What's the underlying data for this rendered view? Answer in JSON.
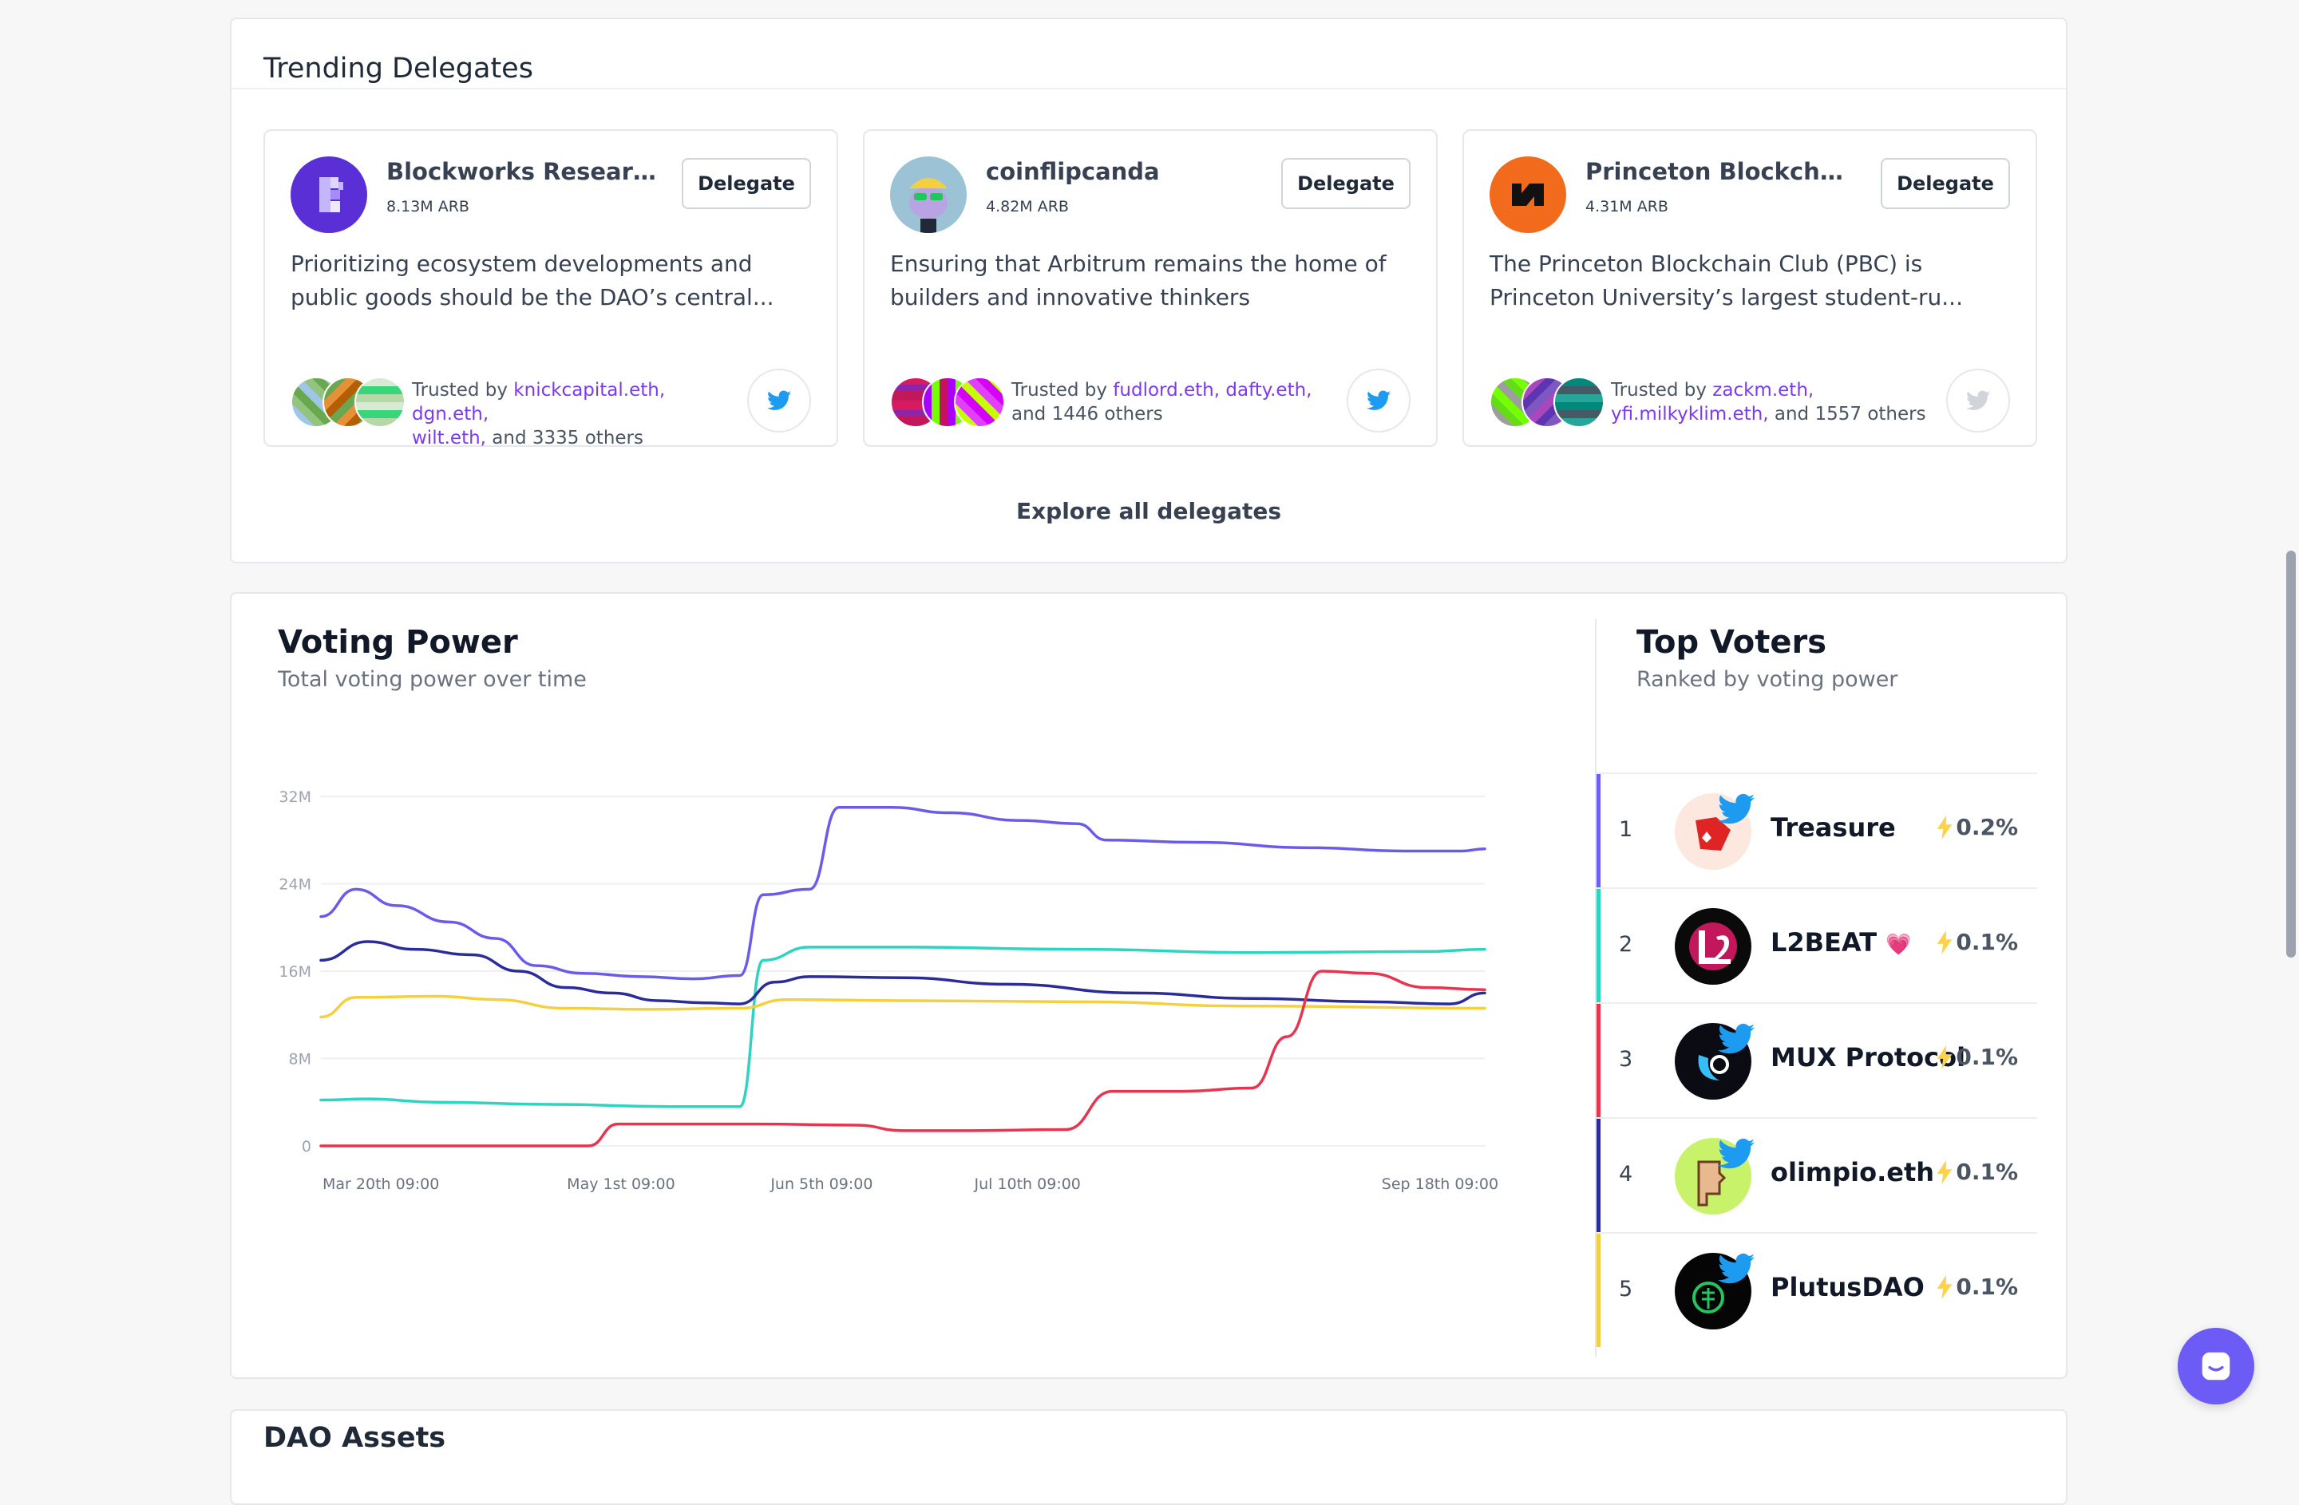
{
  "trending": {
    "title": "Trending Delegates",
    "delegate_label": "Delegate",
    "explore_label": "Explore all delegates",
    "cards": [
      {
        "name": "Blockworks Research",
        "power": "8.13M ARB",
        "bio": "Prioritizing ecosystem developments and public goods should be the DAO’s central...",
        "trusted_prefix": "Trusted by ",
        "links": [
          "knickcapital.eth,",
          "dgn.eth,",
          "wilt.eth,"
        ],
        "others": "and 3335 others",
        "avatar_color": "#5b2fd6",
        "twitter_active": true
      },
      {
        "name": "coinflipcanda",
        "power": "4.82M ARB",
        "bio": "Ensuring that Arbitrum remains the home of builders and innovative thinkers",
        "trusted_prefix": "Trusted by ",
        "links": [
          "fudlord.eth,",
          "dafty.eth,"
        ],
        "others": "and 1446 others",
        "avatar_color": "#8fb8cf",
        "twitter_active": true
      },
      {
        "name": "Princeton Blockchain...",
        "power": "4.31M ARB",
        "bio": "The Princeton Blockchain Club (PBC) is Princeton University’s largest student-ru...",
        "trusted_prefix": "Trusted by ",
        "links": [
          "zackm.eth,",
          "yfi.milkyklim.eth,"
        ],
        "others": "and 1557 others",
        "avatar_color": "#f26b1d",
        "twitter_active": false
      }
    ]
  },
  "voting_power": {
    "title": "Voting Power",
    "subtitle": "Total voting power over time"
  },
  "chart_data": {
    "type": "line",
    "title": "Voting Power",
    "subtitle": "Total voting power over time",
    "x_tick_labels": [
      "Mar 20th 09:00",
      "May 1st 09:00",
      "Jun 5th 09:00",
      "Jul 10th 09:00",
      "Sep 18th 09:00"
    ],
    "x_tick_positions": [
      0,
      42,
      77,
      112,
      182
    ],
    "y_tick_labels": [
      "0",
      "8M",
      "16M",
      "24M",
      "32M"
    ],
    "y_tick_values": [
      0,
      8,
      16,
      24,
      32
    ],
    "ylim": [
      0,
      32
    ],
    "xlim": [
      0,
      200
    ],
    "grid": true,
    "series": [
      {
        "color": "#6b5bed",
        "points": [
          [
            0,
            21
          ],
          [
            6,
            23.5
          ],
          [
            13,
            22
          ],
          [
            22,
            20.5
          ],
          [
            30,
            19
          ],
          [
            37,
            16.5
          ],
          [
            45,
            15.8
          ],
          [
            55,
            15.5
          ],
          [
            64,
            15.3
          ],
          [
            72,
            15.6
          ],
          [
            76,
            23
          ],
          [
            84,
            23.5
          ],
          [
            89,
            31
          ],
          [
            98,
            31
          ],
          [
            108,
            30.5
          ],
          [
            120,
            29.8
          ],
          [
            130,
            29.5
          ],
          [
            135,
            28
          ],
          [
            150,
            27.8
          ],
          [
            170,
            27.3
          ],
          [
            186,
            27
          ],
          [
            196,
            27
          ],
          [
            200,
            27.2
          ]
        ]
      },
      {
        "color": "#2dd4bf",
        "points": [
          [
            0,
            4.2
          ],
          [
            8,
            4.3
          ],
          [
            20,
            4
          ],
          [
            40,
            3.8
          ],
          [
            60,
            3.6
          ],
          [
            72,
            3.6
          ],
          [
            76,
            17
          ],
          [
            84,
            18.2
          ],
          [
            100,
            18.2
          ],
          [
            130,
            18
          ],
          [
            160,
            17.7
          ],
          [
            190,
            17.8
          ],
          [
            200,
            18
          ]
        ]
      },
      {
        "color": "#2b2b9a",
        "points": [
          [
            0,
            17
          ],
          [
            8,
            18.7
          ],
          [
            16,
            18
          ],
          [
            26,
            17.5
          ],
          [
            34,
            16
          ],
          [
            42,
            14.5
          ],
          [
            50,
            14
          ],
          [
            58,
            13.3
          ],
          [
            66,
            13.1
          ],
          [
            72,
            13
          ],
          [
            78,
            15
          ],
          [
            84,
            15.5
          ],
          [
            100,
            15.4
          ],
          [
            118,
            14.8
          ],
          [
            140,
            14
          ],
          [
            160,
            13.5
          ],
          [
            180,
            13.2
          ],
          [
            194,
            13
          ],
          [
            200,
            14
          ]
        ]
      },
      {
        "color": "#f4d03f",
        "points": [
          [
            0,
            11.8
          ],
          [
            6,
            13.6
          ],
          [
            20,
            13.7
          ],
          [
            30,
            13.4
          ],
          [
            42,
            12.6
          ],
          [
            56,
            12.5
          ],
          [
            72,
            12.6
          ],
          [
            80,
            13.4
          ],
          [
            100,
            13.3
          ],
          [
            130,
            13.2
          ],
          [
            160,
            12.8
          ],
          [
            200,
            12.6
          ]
        ]
      },
      {
        "color": "#e8344e",
        "points": [
          [
            0,
            0
          ],
          [
            30,
            0
          ],
          [
            46,
            0
          ],
          [
            51,
            2
          ],
          [
            60,
            2
          ],
          [
            75,
            2
          ],
          [
            92,
            1.9
          ],
          [
            100,
            1.4
          ],
          [
            112,
            1.4
          ],
          [
            128,
            1.5
          ],
          [
            136,
            5
          ],
          [
            148,
            5
          ],
          [
            160,
            5.3
          ],
          [
            166,
            10
          ],
          [
            172,
            16
          ],
          [
            180,
            15.8
          ],
          [
            190,
            14.5
          ],
          [
            200,
            14.3
          ]
        ]
      }
    ]
  },
  "top_voters": {
    "title": "Top Voters",
    "subtitle": "Ranked by voting power",
    "voters": [
      {
        "rank": "1",
        "name": "Treasure",
        "emoji": "",
        "pct": "0.2%",
        "color": "#6d5ff5",
        "avatar_bg": "#fde8e0",
        "avatar_fg": "#e02424",
        "twitter": true
      },
      {
        "rank": "2",
        "name": "L2BEAT",
        "emoji": "💗",
        "pct": "0.1%",
        "color": "#2dd4bf",
        "avatar_bg": "#0a0a0a",
        "avatar_fg": "#ff3e8b",
        "twitter": false
      },
      {
        "rank": "3",
        "name": "MUX Protocol",
        "emoji": "",
        "pct": "0.1%",
        "color": "#e8344e",
        "avatar_bg": "#0b0b14",
        "avatar_fg": "#38bdf8",
        "twitter": true
      },
      {
        "rank": "4",
        "name": "olimpio.eth",
        "emoji": "",
        "pct": "0.1%",
        "color": "#2b2b9a",
        "avatar_bg": "#c9f26b",
        "avatar_fg": "#e8b98f",
        "twitter": true
      },
      {
        "rank": "5",
        "name": "PlutusDAO",
        "emoji": "",
        "pct": "0.1%",
        "color": "#f4d03f",
        "avatar_bg": "#050505",
        "avatar_fg": "#22c55e",
        "twitter": true
      }
    ]
  },
  "dao_section": {
    "title": "DAO Assets"
  }
}
